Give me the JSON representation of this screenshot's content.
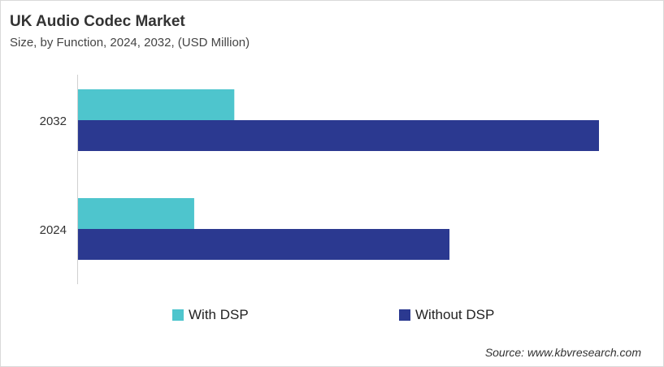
{
  "title": "UK Audio Codec Market",
  "subtitle": "Size, by Function, 2024, 2032, (USD Million)",
  "source": "Source: www.kbvresearch.com",
  "chart_data": {
    "type": "bar",
    "orientation": "horizontal",
    "categories": [
      "2032",
      "2024"
    ],
    "series": [
      {
        "name": "With DSP",
        "color": "#4EC5CD",
        "values": [
          30,
          22.3
        ]
      },
      {
        "name": "Without DSP",
        "color": "#2B3990",
        "values": [
          100,
          71.3
        ]
      }
    ],
    "value_note_scale": "relative",
    "xlim": [
      0,
      100
    ],
    "grid": false,
    "legend": "bottom"
  }
}
